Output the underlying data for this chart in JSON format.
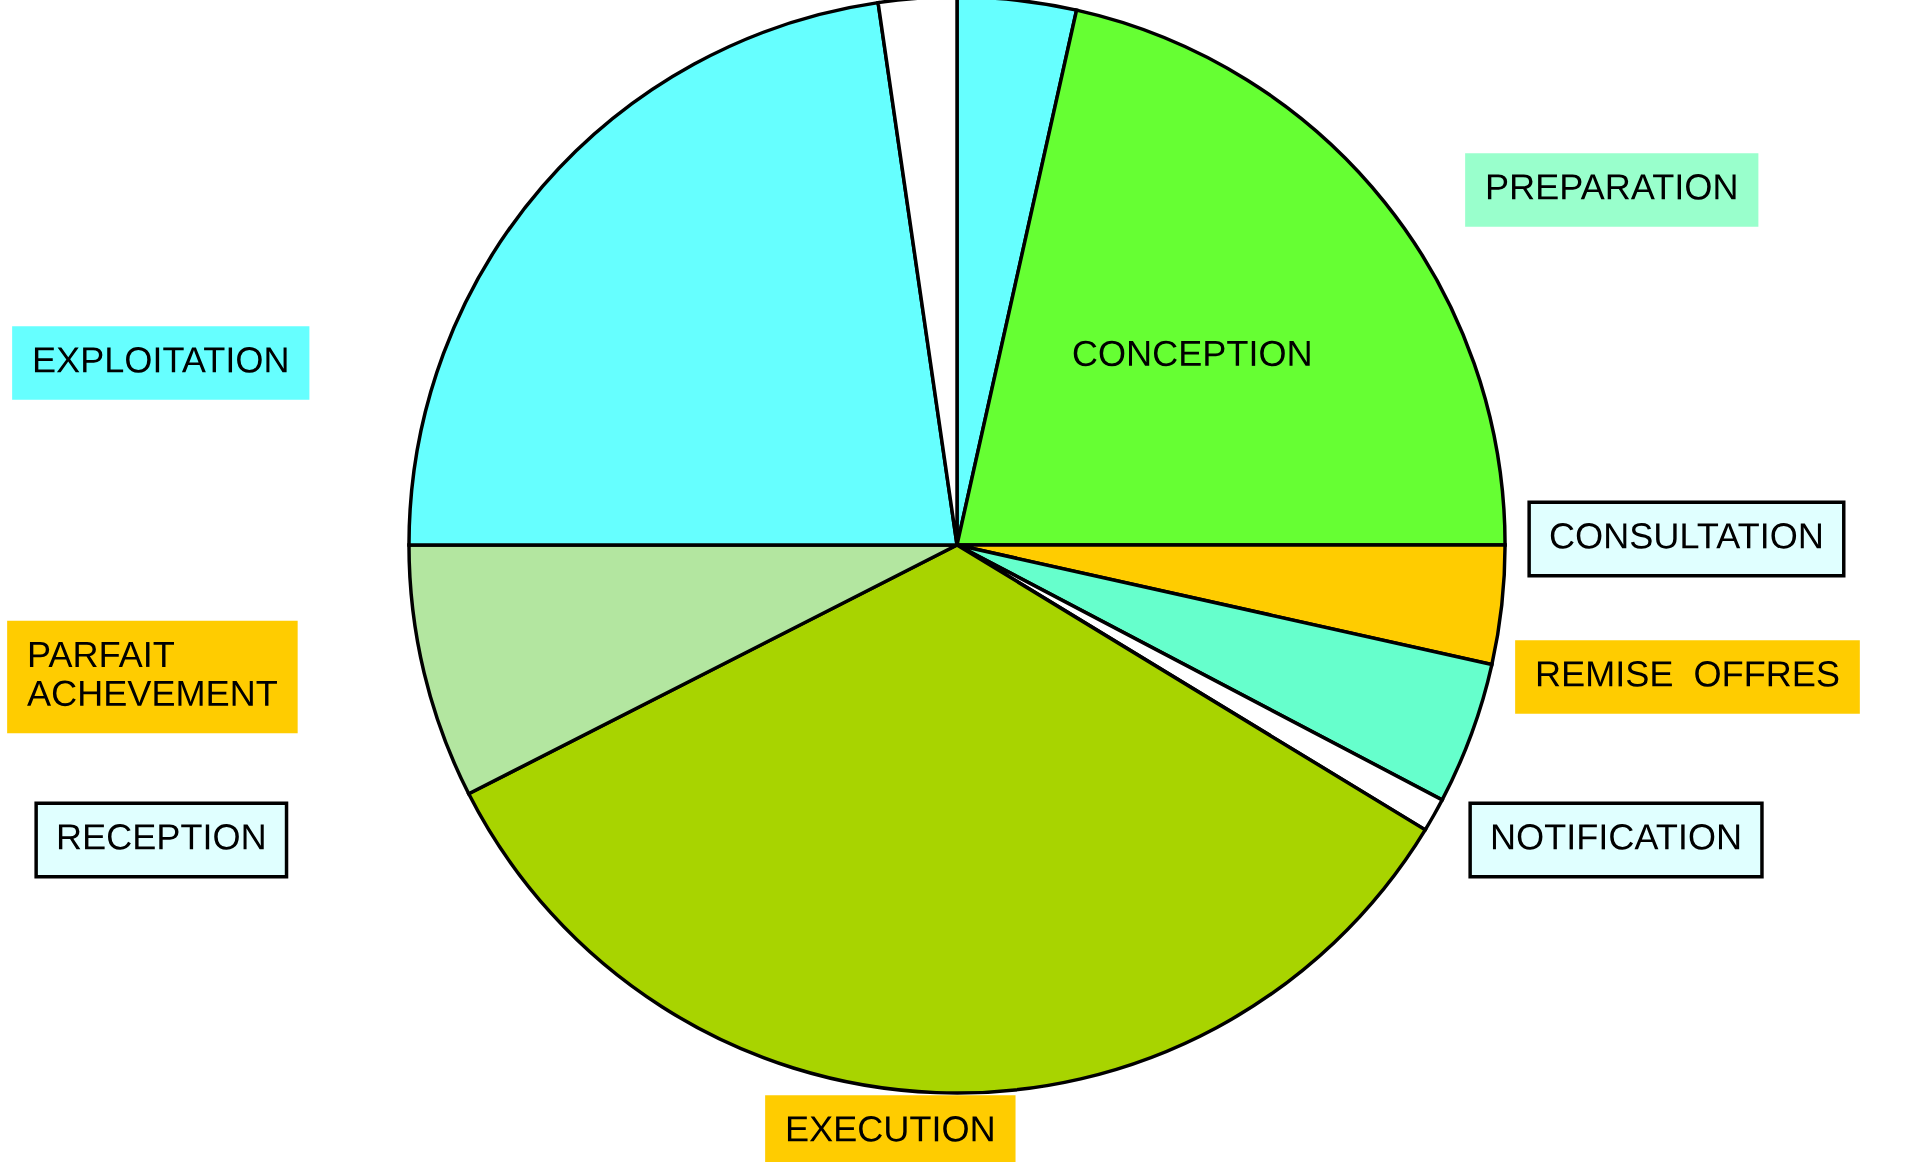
{
  "chart_data": {
    "type": "pie",
    "categories": [
      null,
      "CONCEPTION",
      null,
      null,
      null,
      null,
      null,
      null,
      null
    ],
    "values": [
      3.5,
      21.5,
      3.5,
      4.2,
      1.0,
      33.8,
      7.5,
      22.7,
      2.3
    ],
    "colors": [
      "#66ffff",
      "#66ff33",
      "#ffcc00",
      "#66ffcc",
      "#ffffff",
      "#a8d400",
      "#b3e6a0",
      "#66ffff",
      "#ffffff"
    ],
    "annotations": [
      "PREPARATION",
      "CONSULTATION",
      "REMISE  OFFRES",
      "NOTIFICATION",
      "EXECUTION",
      "RECEPTION",
      "PARFAIT\nACHEVEMENT",
      "EXPLOITATION"
    ]
  }
}
